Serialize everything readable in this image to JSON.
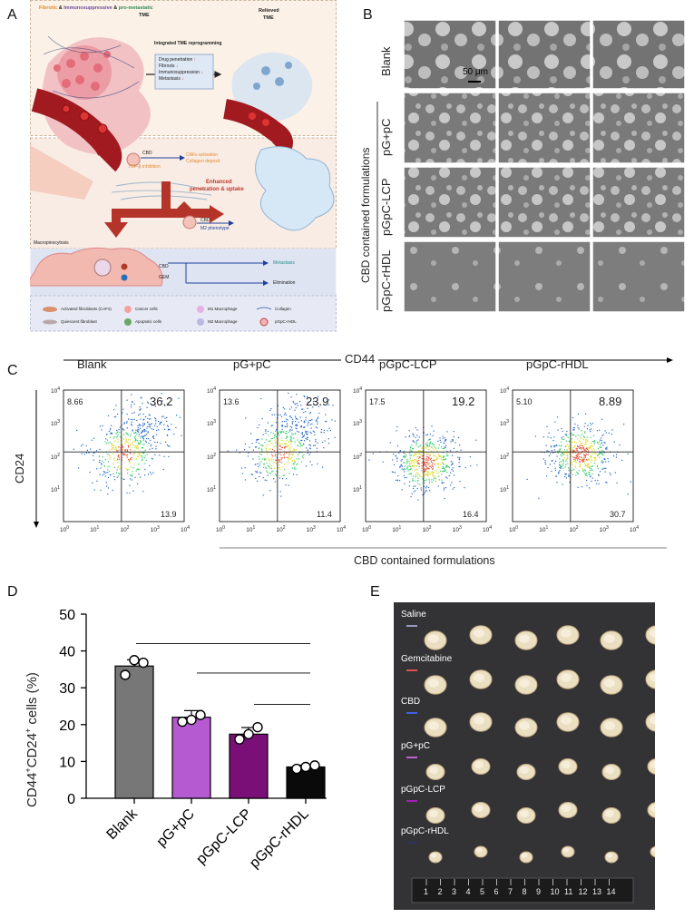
{
  "panel_letters": {
    "a": "A",
    "b": "B",
    "c": "C",
    "d": "D",
    "e": "E"
  },
  "panelA": {
    "header_1": "Fibrotic",
    "header_amp1": "&",
    "header_2": "Immunosuppressive",
    "header_amp2": "&",
    "header_3": "pro-metastatic",
    "header_tme": "TME",
    "relieved": "Relieved",
    "relieved_tme": "TME",
    "integrated": "Integrated TME reprogramming",
    "box_items": [
      "Drug penetration",
      "Fibrosis",
      "Immunosuppression",
      "Metastasis"
    ],
    "box_arrows": [
      "↑",
      "↓",
      "↓",
      "↓"
    ],
    "cbd1": "CBD",
    "tgf": "TGF-β inhibition",
    "cafs": "CAFs activation",
    "collagen_dep": "Collagen deposit",
    "enhanced_1": "Enhanced",
    "enhanced_2": "penetration & uptake",
    "cbd2": "CBD",
    "m2": "M2 phenotype",
    "macropino": "Macropinocytosis",
    "cbd3": "CBD",
    "gem": "GEM",
    "metastasis": "Metastasis",
    "elimination": "Elimination",
    "legend": [
      "Activated fibroblasts (CAFs)",
      "Cancer cells",
      "M1 Macrophage",
      "Collagen",
      "Quiescent fibroblast",
      "Apoptotic cells",
      "M2 Macrophage",
      "pGpC-rHDL"
    ],
    "colors": {
      "orange": "#e58a2e",
      "purple": "#6f4a9e",
      "green": "#2e8b57",
      "red": "#c0392b",
      "blue": "#1f3f9e",
      "teal": "#2a8f8f"
    }
  },
  "panelB": {
    "rows": [
      "Blank",
      "pG+pC",
      "pGpC-LCP",
      "pGpC-rHDL"
    ],
    "scale": "50 μm",
    "side_label": "CBD contained formulations"
  },
  "panelC": {
    "cd44": "CD44",
    "cd24": "CD24",
    "plots": [
      {
        "title": "Blank",
        "ul": "8.66",
        "ur": "36.2",
        "lr": "13.9"
      },
      {
        "title": "pG+pC",
        "ul": "13.6",
        "ur": "23.9",
        "lr": "11.4"
      },
      {
        "title": "pGpC-LCP",
        "ul": "17.5",
        "ur": "19.2",
        "lr": "16.4"
      },
      {
        "title": "pGpC-rHDL",
        "ul": "5.10",
        "ur": "8.89",
        "lr": "30.7"
      }
    ],
    "ticks": [
      "10",
      "10",
      "10",
      "10",
      "10"
    ],
    "exps": [
      "0",
      "1",
      "2",
      "3",
      "4"
    ],
    "footer": "CBD contained formulations"
  },
  "chart_data": {
    "type": "bar",
    "title": "",
    "ylabel": "CD44+CD24+ cells (%)",
    "ylabel_main": "CD44",
    "ylabel_sup1": "+",
    "ylabel_mid": "CD24",
    "ylabel_sup2": "+",
    "ylabel_tail": " cells (%)",
    "categories": [
      "Blank",
      "pG+pC",
      "pGpC-LCP",
      "pGpC-rHDL"
    ],
    "values": [
      35.9,
      22.0,
      17.4,
      8.5
    ],
    "errors": [
      1.7,
      1.8,
      1.8,
      0.5
    ],
    "points": [
      [
        33.5,
        37.5,
        36.8
      ],
      [
        20.8,
        21.3,
        22.6
      ],
      [
        16.0,
        17.4,
        19.3
      ],
      [
        8.0,
        8.5,
        8.9
      ]
    ],
    "colors": [
      "#777777",
      "#b65ad1",
      "#7a0f78",
      "#0a0a0a"
    ],
    "yticks": [
      "0",
      "10",
      "20",
      "30",
      "40",
      "50"
    ],
    "ylim": [
      0,
      50
    ]
  },
  "panelE": {
    "labels": [
      "Saline",
      "Gemcitabine",
      "CBD",
      "pG+pC",
      "pGpC-LCP",
      "pGpC-rHDL"
    ],
    "marker_colors": [
      "#9a9ac0",
      "#e05050",
      "#4060e0",
      "#c060d0",
      "#a020b0",
      "#303060"
    ],
    "ruler": [
      "1",
      "2",
      "3",
      "4",
      "5",
      "6",
      "7",
      "8",
      "9",
      "10",
      "11",
      "12",
      "13",
      "14"
    ]
  }
}
